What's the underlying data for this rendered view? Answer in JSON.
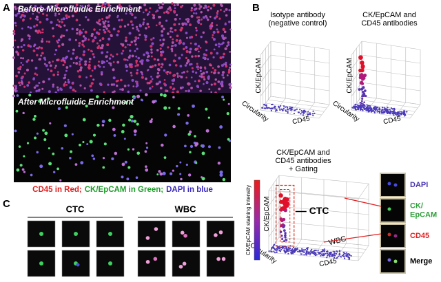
{
  "panel_a": {
    "label": "A",
    "top_caption": "Before Microfluidic Enrichment",
    "bottom_caption": "After Microfluidic Enrichment",
    "legend": [
      "CD45 in Red;",
      "CK/EpCAM in Green;",
      "DAPI in blue"
    ]
  },
  "panel_b": {
    "label": "B",
    "plots": [
      {
        "title": [
          "Isotype antibody",
          "(negative control)"
        ],
        "y_axis": "CK/EpCAM",
        "z_axis": "Circularity",
        "x_axis": "CD45"
      },
      {
        "title": [
          "CK/EpCAM and",
          "CD45 antibodies"
        ],
        "y_axis": "CK/EpCAM",
        "z_axis": "Circularity",
        "x_axis": "CD45"
      },
      {
        "title": [
          "CK/EpCAM and",
          "CD45 antibodies",
          "+ Gating"
        ],
        "y_axis": "CK/EpCAM",
        "z_axis": "Circularity",
        "x_axis": "CD45",
        "colorbar": "CK/EpCAM staining intensity",
        "annotations": [
          "CTC",
          "WBC"
        ]
      }
    ],
    "channels": [
      [
        "DAPI"
      ],
      [
        "CK/",
        "EpCAM"
      ],
      [
        "CD45"
      ],
      [
        "Merge"
      ]
    ]
  },
  "panel_c": {
    "label": "C",
    "groups": [
      "CTC",
      "WBC"
    ]
  }
}
